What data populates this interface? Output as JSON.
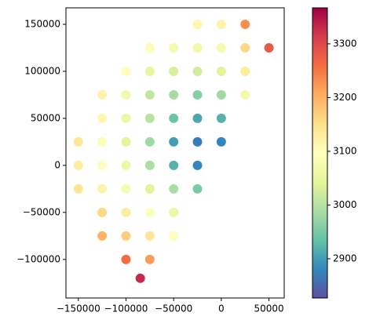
{
  "chart_data": {
    "type": "scatter",
    "x": [
      -25000,
      0,
      25000,
      -75000,
      -50000,
      -25000,
      0,
      25000,
      50000,
      -100000,
      -75000,
      -50000,
      -25000,
      0,
      25000,
      -125000,
      -100000,
      -75000,
      -50000,
      -25000,
      0,
      25000,
      -125000,
      -100000,
      -75000,
      -50000,
      -25000,
      0,
      -150000,
      -125000,
      -100000,
      -75000,
      -50000,
      -25000,
      0,
      -150000,
      -125000,
      -100000,
      -75000,
      -50000,
      -25000,
      -150000,
      -125000,
      -100000,
      -75000,
      -50000,
      -25000,
      -125000,
      -100000,
      -75000,
      -50000,
      -125000,
      -100000,
      -75000,
      -50000,
      -100000,
      -75000,
      -85000
    ],
    "y": [
      150000,
      150000,
      150000,
      125000,
      125000,
      125000,
      125000,
      125000,
      125000,
      100000,
      100000,
      100000,
      100000,
      100000,
      100000,
      75000,
      75000,
      75000,
      75000,
      75000,
      75000,
      75000,
      50000,
      50000,
      50000,
      50000,
      50000,
      50000,
      25000,
      25000,
      25000,
      25000,
      25000,
      25000,
      25000,
      0,
      0,
      0,
      0,
      0,
      0,
      -25000,
      -25000,
      -25000,
      -25000,
      -25000,
      -25000,
      -50000,
      -50000,
      -50000,
      -50000,
      -75000,
      -75000,
      -75000,
      -75000,
      -100000,
      -100000,
      -120000
    ],
    "c": [
      3113,
      3117,
      3230,
      3088,
      3073,
      3068,
      3073,
      3160,
      3280,
      3100,
      3050,
      3030,
      3023,
      3040,
      3130,
      3120,
      3070,
      3010,
      2985,
      2960,
      2980,
      3070,
      3110,
      3060,
      3000,
      2940,
      2910,
      2920,
      3140,
      3090,
      3040,
      2980,
      2900,
      2870,
      2880,
      3130,
      3100,
      3060,
      2990,
      2920,
      2880,
      3140,
      3120,
      3080,
      3040,
      2990,
      2950,
      3160,
      3130,
      3090,
      3060,
      3200,
      3170,
      3140,
      3100,
      3260,
      3220,
      3330
    ],
    "xlim": [
      -163000,
      66000
    ],
    "ylim": [
      -141000,
      167500
    ],
    "clim": [
      2827,
      3367
    ],
    "xticks": [
      {
        "value": -150000,
        "label": "−150000"
      },
      {
        "value": -100000,
        "label": "−100000"
      },
      {
        "value": -50000,
        "label": "−50000"
      },
      0,
      50000
    ],
    "yticks": [
      {
        "value": -100000,
        "label": "−100000"
      },
      {
        "value": -50000,
        "label": "−50000"
      },
      0,
      50000,
      100000,
      150000
    ],
    "cticks": [
      2900,
      3000,
      3100,
      3200,
      3300
    ],
    "colormap": [
      "#5e4fa2",
      "#3288bd",
      "#66c2a5",
      "#abdda4",
      "#e6f598",
      "#ffffbf",
      "#fee08b",
      "#fdae61",
      "#f46d43",
      "#d53e4f",
      "#9e0142"
    ]
  }
}
